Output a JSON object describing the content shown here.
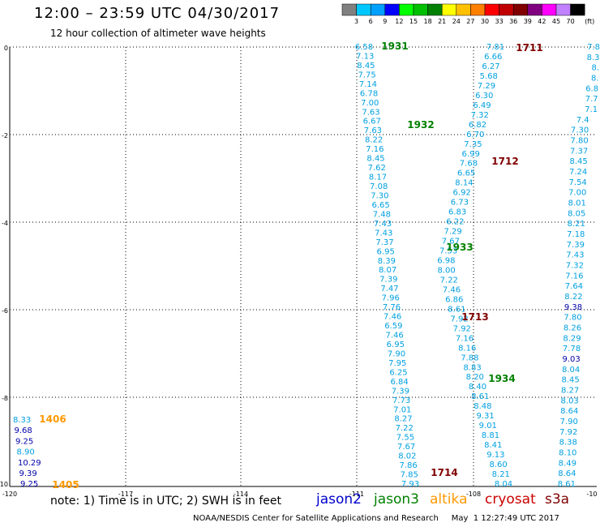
{
  "header": {
    "title": "12:00 – 23:59 UTC 04/30/2017",
    "subtitle": "12 hour collection of altimeter wave heights"
  },
  "colorbar": {
    "unit": "(ft)",
    "ticks": [
      "3",
      "6",
      "9",
      "12",
      "15",
      "18",
      "21",
      "24",
      "27",
      "30",
      "33",
      "36",
      "39",
      "42",
      "45",
      "70"
    ],
    "colors": [
      "#808080",
      "#00c8ff",
      "#00a0ff",
      "#0000ff",
      "#00ff00",
      "#00c000",
      "#008000",
      "#ffff00",
      "#ffc000",
      "#ff8000",
      "#ff0000",
      "#c00000",
      "#800000",
      "#800080",
      "#ff00ff",
      "#c080ff",
      "#000000"
    ]
  },
  "axes": {
    "x_ticks": [
      "-120",
      "-117",
      "-114",
      "-111",
      "-108",
      "-10"
    ],
    "y_ticks": [
      "0",
      "-2",
      "-4",
      "-6",
      "-8",
      "-10"
    ]
  },
  "legend": {
    "note": "note: 1) Time is in UTC; 2) SWH is in feet",
    "satellites": [
      {
        "name": "jason2",
        "color": "#0000cc"
      },
      {
        "name": "jason3",
        "color": "#008000"
      },
      {
        "name": "altika",
        "color": "#ff9900"
      },
      {
        "name": "cryosat",
        "color": "#cc0000"
      },
      {
        "name": "s3a",
        "color": "#800000"
      }
    ]
  },
  "credit": "NOAA/NESDIS Center for Satellite Applications and Research     May  1 12:27:49 UTC 2017",
  "pass_labels": [
    {
      "text": "1931",
      "color": "#008000"
    },
    {
      "text": "1932",
      "color": "#008000"
    },
    {
      "text": "1933",
      "color": "#008000"
    },
    {
      "text": "1934",
      "color": "#008000"
    },
    {
      "text": "1711",
      "color": "#800000"
    },
    {
      "text": "1712",
      "color": "#800000"
    },
    {
      "text": "1713",
      "color": "#800000"
    },
    {
      "text": "1714",
      "color": "#800000"
    },
    {
      "text": "1406",
      "color": "#ff9900"
    },
    {
      "text": "1405",
      "color": "#ff9900"
    }
  ],
  "tracks": {
    "jason3_a": [
      "6.58",
      "7.13",
      "8.45",
      "7.75",
      "7.14",
      "6.78",
      "7.00",
      "7.63",
      "6.67",
      "7.63",
      "8.22",
      "7.16",
      "8.45",
      "7.62",
      "8.17",
      "7.08",
      "7.30",
      "6.65",
      "7.48",
      "7.43",
      "7.43",
      "7.37",
      "6.95",
      "8.39",
      "8.07",
      "7.39",
      "7.47",
      "7.96",
      "7.76",
      "7.46",
      "6.59",
      "7.46",
      "6.95",
      "7.90",
      "7.95",
      "6.25",
      "6.84",
      "7.39",
      "7.73",
      "7.01",
      "8.27",
      "7.22",
      "7.55",
      "7.67",
      "8.02",
      "7.86",
      "7.85",
      "7.93"
    ],
    "s3a_a": [
      "7.81",
      "6.66",
      "6.27",
      "5.68",
      "7.29",
      "6.30",
      "6.49",
      "7.32",
      "6.82",
      "6.70",
      "7.35",
      "6.99",
      "7.68",
      "6.65",
      "8.14",
      "6.92",
      "6.73",
      "6.83",
      "6.22",
      "7.29",
      "7.67",
      "7.53",
      "6.98",
      "8.00",
      "7.22",
      "7.46",
      "6.86",
      "8.61",
      "7.92",
      "7.92",
      "7.16",
      "8.16",
      "7.88",
      "8.83",
      "8.20",
      "8.40",
      "8.61",
      "8.48",
      "9.31",
      "9.01",
      "8.81",
      "8.41",
      "9.13",
      "8.60",
      "8.21",
      "8.04"
    ],
    "right_col": [
      "7.8",
      "8.3",
      "8.",
      "8.",
      "6.8",
      "7.7",
      "7.1",
      "7.4",
      "7.30",
      "7.80",
      "7.37",
      "8.45",
      "7.24",
      "7.54",
      "7.00",
      "8.01",
      "8.05",
      "8.21",
      "7.18",
      "7.39",
      "7.43",
      "7.32",
      "7.16",
      "7.64",
      "8.22",
      "9.38",
      "7.80",
      "8.26",
      "8.29",
      "7.78",
      "9.03",
      "8.04",
      "8.45",
      "8.27",
      "8.03",
      "8.64",
      "7.90",
      "7.92",
      "8.38",
      "8.10",
      "8.49",
      "8.64",
      "8.61"
    ],
    "right_col_navy_indices": [
      25,
      30
    ],
    "altika": [
      "8.33",
      "9.68",
      "9.25",
      "8.90",
      "10.29",
      "9.39",
      "9.25"
    ],
    "altika_navy_indices": [
      1,
      2,
      4,
      5,
      6
    ]
  }
}
